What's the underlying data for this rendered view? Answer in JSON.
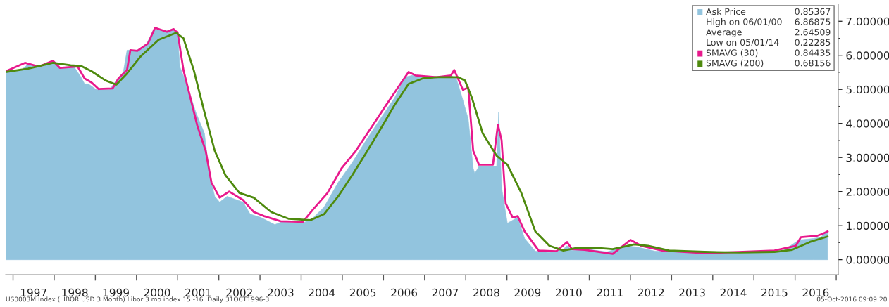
{
  "chart_data": {
    "type": "line",
    "xlim": [
      1996.82,
      2017.05
    ],
    "ylim": [
      -0.44,
      7.5
    ],
    "xticks": [
      {
        "value": 1997,
        "label": null
      },
      {
        "value": 1998,
        "label": null
      },
      {
        "value": 1999,
        "label": null
      },
      {
        "value": 2000,
        "label": null
      },
      {
        "value": 2001,
        "label": null
      },
      {
        "value": 2002,
        "label": null
      },
      {
        "value": 2003,
        "label": null
      },
      {
        "value": 2004,
        "label": null
      },
      {
        "value": 2005,
        "label": null
      },
      {
        "value": 2006,
        "label": null
      },
      {
        "value": 2007,
        "label": null
      },
      {
        "value": 2008,
        "label": null
      },
      {
        "value": 2009,
        "label": null
      },
      {
        "value": 2010,
        "label": null
      },
      {
        "value": 2011,
        "label": null
      },
      {
        "value": 2012,
        "label": null
      },
      {
        "value": 2013,
        "label": null
      },
      {
        "value": 2014,
        "label": null
      },
      {
        "value": 2015,
        "label": null
      },
      {
        "value": 2016,
        "label": null
      },
      {
        "value": 2017,
        "label": null
      },
      {
        "value": 1997.5,
        "label": "1997"
      },
      {
        "value": 1998.5,
        "label": "1998"
      },
      {
        "value": 1999.5,
        "label": "1999"
      },
      {
        "value": 2000.5,
        "label": "2000"
      },
      {
        "value": 2001.5,
        "label": "2001"
      },
      {
        "value": 2002.5,
        "label": "2002"
      },
      {
        "value": 2003.5,
        "label": "2003"
      },
      {
        "value": 2004.5,
        "label": "2004"
      },
      {
        "value": 2005.5,
        "label": "2005"
      },
      {
        "value": 2006.5,
        "label": "2006"
      },
      {
        "value": 2007.5,
        "label": "2007"
      },
      {
        "value": 2008.5,
        "label": "2008"
      },
      {
        "value": 2009.5,
        "label": "2009"
      },
      {
        "value": 2010.5,
        "label": "2010"
      },
      {
        "value": 2011.5,
        "label": "2011"
      },
      {
        "value": 2012.5,
        "label": "2012"
      },
      {
        "value": 2013.5,
        "label": "2013"
      },
      {
        "value": 2014.5,
        "label": "2014"
      },
      {
        "value": 2015.5,
        "label": "2015"
      },
      {
        "value": 2016.5,
        "label": "2016"
      }
    ],
    "yticks": [
      {
        "value": 0,
        "label": "0.00000"
      },
      {
        "value": 0.5,
        "label": null
      },
      {
        "value": 1,
        "label": "1.00000"
      },
      {
        "value": 1.5,
        "label": null
      },
      {
        "value": 2,
        "label": "2.00000"
      },
      {
        "value": 2.5,
        "label": null
      },
      {
        "value": 3,
        "label": "3.00000"
      },
      {
        "value": 3.5,
        "label": null
      },
      {
        "value": 4,
        "label": "4.00000"
      },
      {
        "value": 4.5,
        "label": null
      },
      {
        "value": 5,
        "label": "5.00000"
      },
      {
        "value": 5.5,
        "label": null
      },
      {
        "value": 6,
        "label": "6.00000"
      },
      {
        "value": 6.5,
        "label": null
      },
      {
        "value": 7,
        "label": "7.00000"
      }
    ],
    "legend": "top right",
    "grid": false,
    "series": [
      {
        "name": "Ask Price",
        "type": "area",
        "color": "#92c4de",
        "x": [
          1996.82,
          1997.2,
          1997.37,
          1997.71,
          1997.97,
          1998.14,
          1998.48,
          1998.65,
          1998.74,
          1998.83,
          1999.03,
          1999.34,
          1999.51,
          1999.68,
          1999.77,
          2000.02,
          2000.25,
          2000.42,
          2000.71,
          2000.88,
          2001.0,
          2001.05,
          2001.22,
          2001.44,
          2001.65,
          2001.77,
          2001.9,
          2002.02,
          2002.2,
          2002.59,
          2002.76,
          2003.02,
          2003.36,
          2003.53,
          2004.04,
          2004.3,
          2004.56,
          2004.9,
          2005.24,
          2005.58,
          2005.92,
          2006.27,
          2006.52,
          2006.7,
          2007.29,
          2007.64,
          2007.77,
          2007.89,
          2008.06,
          2008.18,
          2008.22,
          2008.32,
          2008.75,
          2008.8,
          2008.87,
          2009.01,
          2009.26,
          2009.43,
          2009.69,
          2010.03,
          2010.37,
          2010.46,
          2010.58,
          2011.06,
          2011.43,
          2011.91,
          2012.17,
          2012.6,
          2013.8,
          2014.65,
          2015.5,
          2015.67,
          2016.02,
          2016.11,
          2016.44,
          2016.62,
          2016.79
        ],
        "values": [
          5.53,
          5.57,
          5.74,
          5.67,
          5.82,
          5.63,
          5.67,
          5.36,
          5.16,
          5.16,
          4.99,
          4.99,
          5.26,
          5.51,
          6.15,
          6.15,
          6.35,
          6.77,
          6.71,
          6.77,
          6.66,
          5.67,
          5.16,
          4.33,
          3.71,
          2.52,
          1.86,
          1.69,
          1.86,
          1.69,
          1.34,
          1.24,
          1.03,
          1.11,
          1.07,
          1.24,
          1.55,
          2.27,
          2.85,
          3.51,
          4.13,
          4.75,
          5.36,
          5.41,
          5.36,
          5.41,
          5.32,
          4.85,
          4.13,
          2.68,
          2.53,
          2.74,
          2.74,
          4.33,
          2.12,
          1.07,
          1.24,
          0.62,
          0.25,
          0.21,
          0.31,
          0.41,
          0.27,
          0.29,
          0.23,
          0.41,
          0.37,
          0.25,
          0.21,
          0.19,
          0.23,
          0.23,
          0.52,
          0.58,
          0.62,
          0.66,
          0.85
        ]
      },
      {
        "name": "SMAVG (30)",
        "color": "#e8198c",
        "x": [
          1996.82,
          1997.29,
          1997.63,
          1997.97,
          1998.14,
          1998.57,
          1998.74,
          1998.91,
          1999.08,
          1999.42,
          1999.56,
          1999.77,
          1999.85,
          2000.02,
          2000.28,
          2000.45,
          2000.74,
          2000.9,
          2001.0,
          2001.14,
          2001.31,
          2001.48,
          2001.68,
          2001.82,
          2002.02,
          2002.25,
          2002.59,
          2002.85,
          2003.1,
          2003.5,
          2004.04,
          2004.3,
          2004.64,
          2004.98,
          2005.33,
          2005.67,
          2006.01,
          2006.35,
          2006.61,
          2006.78,
          2007.29,
          2007.64,
          2007.72,
          2007.81,
          2007.93,
          2008.06,
          2008.18,
          2008.32,
          2008.66,
          2008.78,
          2008.87,
          2008.97,
          2009.14,
          2009.26,
          2009.43,
          2009.77,
          2010.2,
          2010.46,
          2010.58,
          2010.89,
          2011.57,
          2012.0,
          2012.26,
          2012.77,
          2013.8,
          2015.5,
          2016.02,
          2016.14,
          2016.53,
          2016.67,
          2016.79
        ],
        "values": [
          5.53,
          5.78,
          5.67,
          5.84,
          5.63,
          5.67,
          5.32,
          5.2,
          5.01,
          5.03,
          5.32,
          5.57,
          6.15,
          6.13,
          6.35,
          6.81,
          6.69,
          6.77,
          6.66,
          5.57,
          4.75,
          3.92,
          3.2,
          2.27,
          1.82,
          2.0,
          1.75,
          1.4,
          1.28,
          1.13,
          1.11,
          1.49,
          1.96,
          2.68,
          3.2,
          3.82,
          4.44,
          5.05,
          5.51,
          5.41,
          5.36,
          5.41,
          5.57,
          5.32,
          4.99,
          5.05,
          3.2,
          2.79,
          2.79,
          3.96,
          3.51,
          1.65,
          1.24,
          1.28,
          0.83,
          0.27,
          0.25,
          0.52,
          0.31,
          0.29,
          0.17,
          0.58,
          0.41,
          0.27,
          0.19,
          0.27,
          0.41,
          0.66,
          0.7,
          0.76,
          0.83
        ]
      },
      {
        "name": "SMAVG (200)",
        "color": "#4e8a0e",
        "x": [
          1996.82,
          1997.37,
          1997.97,
          1998.4,
          1998.65,
          1998.91,
          1999.25,
          1999.51,
          1999.77,
          2000.11,
          2000.54,
          2000.96,
          2001.14,
          2001.39,
          2001.65,
          2001.9,
          2002.16,
          2002.5,
          2002.85,
          2003.27,
          2003.7,
          2004.22,
          2004.56,
          2004.9,
          2005.24,
          2005.58,
          2005.92,
          2006.27,
          2006.61,
          2006.95,
          2007.29,
          2007.81,
          2007.98,
          2008.15,
          2008.41,
          2008.75,
          2009.01,
          2009.35,
          2009.69,
          2010.03,
          2010.37,
          2010.72,
          2011.14,
          2011.57,
          2012.09,
          2012.43,
          2012.94,
          2013.8,
          2014.65,
          2015.5,
          2015.93,
          2016.36,
          2016.79
        ],
        "values": [
          5.51,
          5.61,
          5.78,
          5.71,
          5.69,
          5.53,
          5.26,
          5.14,
          5.47,
          5.98,
          6.46,
          6.66,
          6.5,
          5.57,
          4.33,
          3.2,
          2.48,
          1.96,
          1.82,
          1.4,
          1.2,
          1.16,
          1.34,
          1.86,
          2.48,
          3.14,
          3.82,
          4.54,
          5.16,
          5.32,
          5.36,
          5.36,
          5.26,
          4.75,
          3.71,
          3.05,
          2.79,
          1.96,
          0.83,
          0.41,
          0.27,
          0.35,
          0.35,
          0.31,
          0.45,
          0.41,
          0.27,
          0.23,
          0.21,
          0.23,
          0.29,
          0.52,
          0.68
        ]
      }
    ],
    "annotations": [
      "0.85367",
      "High on 06/01/00",
      "6.86875",
      "Average",
      "2.64509",
      "Low on 05/01/14",
      "0.22285",
      "0.84435",
      "0.68156",
      "US0003M Index (LIBOR USD 3 Month) Libor 3 mo index 15 -16  Daily 31OCT1996-3",
      "05-Oct-2016 09:09:20"
    ]
  }
}
